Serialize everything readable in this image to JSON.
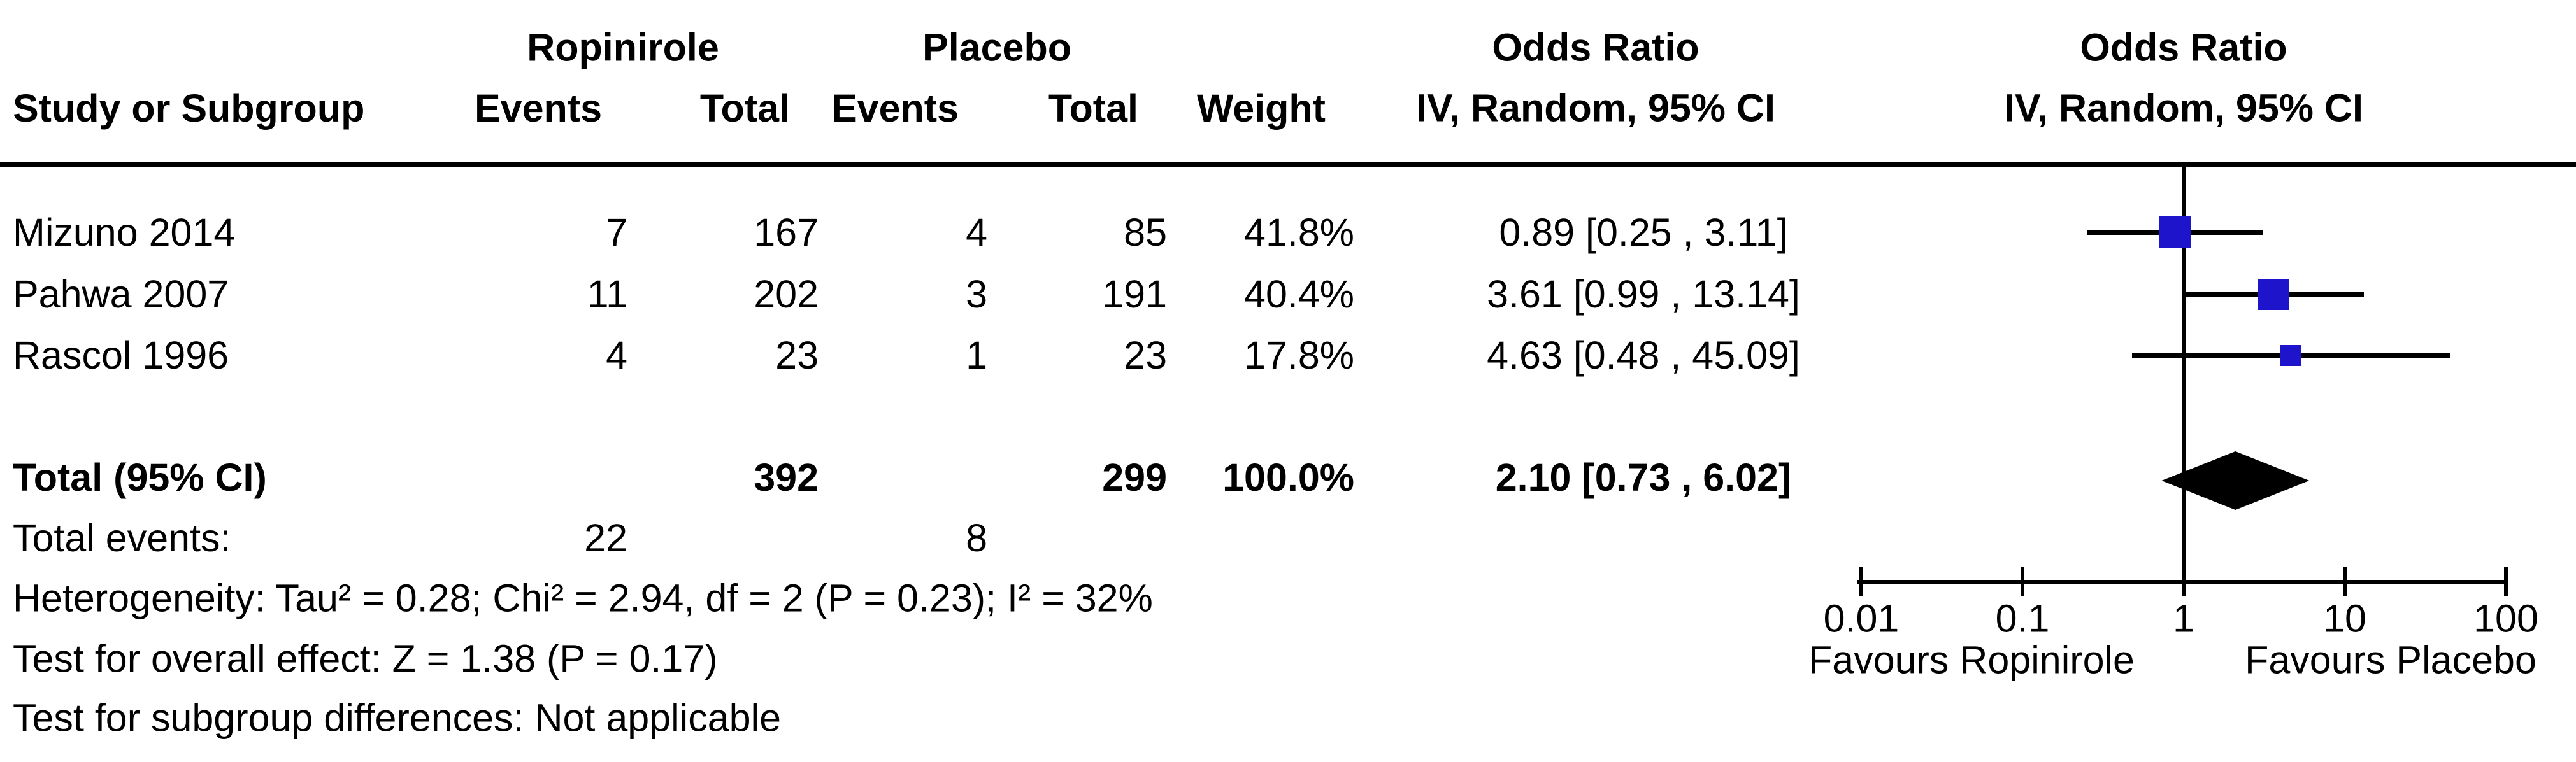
{
  "header": {
    "group_ropinirole": "Ropinirole",
    "group_placebo": "Placebo",
    "group_odds_ratio": "Odds Ratio",
    "group_odds_ratio_plot": "Odds Ratio",
    "col_study": "Study or Subgroup",
    "col_events_rop": "Events",
    "col_total_rop": "Total",
    "col_events_plac": "Events",
    "col_total_plac": "Total",
    "col_weight": "Weight",
    "col_or_ci": "IV, Random, 95% CI",
    "col_or_ci_plot": "IV, Random, 95% CI"
  },
  "rows": [
    {
      "study": "Mizuno 2014",
      "e1": "7",
      "t1": "167",
      "e2": "4",
      "t2": "85",
      "weight": "41.8%",
      "or_ci": "0.89 [0.25 , 3.11]"
    },
    {
      "study": "Pahwa 2007",
      "e1": "11",
      "t1": "202",
      "e2": "3",
      "t2": "191",
      "weight": "40.4%",
      "or_ci": "3.61 [0.99 , 13.14]"
    },
    {
      "study": "Rascol 1996",
      "e1": "4",
      "t1": "23",
      "e2": "1",
      "t2": "23",
      "weight": "17.8%",
      "or_ci": "4.63 [0.48 , 45.09]"
    }
  ],
  "total_row": {
    "label": "Total (95% CI)",
    "t1": "392",
    "t2": "299",
    "weight": "100.0%",
    "or_ci": "2.10 [0.73 , 6.02]"
  },
  "total_events": {
    "label": "Total events:",
    "e1": "22",
    "e2": "8"
  },
  "footnotes": {
    "heterogeneity": "Heterogeneity: Tau² = 0.28; Chi² = 2.94, df = 2 (P = 0.23); I² = 32%",
    "overall_effect": "Test for overall effect: Z = 1.38 (P = 0.17)",
    "subgroup": "Test for subgroup differences: Not applicable"
  },
  "plot": {
    "favours_left": "Favours Ropinirole",
    "favours_right": "Favours Placebo",
    "marker_color": "#1E14CC",
    "diamond_color": "#000000"
  },
  "chart_data": {
    "type": "forest",
    "effect_measure": "Odds Ratio, IV, Random, 95% CI",
    "x_scale": "log10",
    "axis_range": [
      0.01,
      100
    ],
    "axis_ticks": [
      0.01,
      0.1,
      1,
      10,
      100
    ],
    "axis_tick_labels": [
      "0.01",
      "0.1",
      "1",
      "10",
      "100"
    ],
    "null_line": 1,
    "studies": [
      {
        "name": "Mizuno 2014",
        "events_exp": 7,
        "total_exp": 167,
        "events_ctrl": 4,
        "total_ctrl": 85,
        "weight_pct": 41.8,
        "or": 0.89,
        "ci_low": 0.25,
        "ci_high": 3.11
      },
      {
        "name": "Pahwa 2007",
        "events_exp": 11,
        "total_exp": 202,
        "events_ctrl": 3,
        "total_ctrl": 191,
        "weight_pct": 40.4,
        "or": 3.61,
        "ci_low": 0.99,
        "ci_high": 13.14
      },
      {
        "name": "Rascol 1996",
        "events_exp": 4,
        "total_exp": 23,
        "events_ctrl": 1,
        "total_ctrl": 23,
        "weight_pct": 17.8,
        "or": 4.63,
        "ci_low": 0.48,
        "ci_high": 45.09
      }
    ],
    "total": {
      "total_exp": 392,
      "total_ctrl": 299,
      "weight_pct": 100.0,
      "or": 2.1,
      "ci_low": 0.73,
      "ci_high": 6.02,
      "total_events_exp": 22,
      "total_events_ctrl": 8,
      "heterogeneity": {
        "tau2": 0.28,
        "chi2": 2.94,
        "df": 2,
        "p": 0.23,
        "i2_pct": 32
      },
      "overall_effect": {
        "z": 1.38,
        "p": 0.17
      }
    }
  }
}
